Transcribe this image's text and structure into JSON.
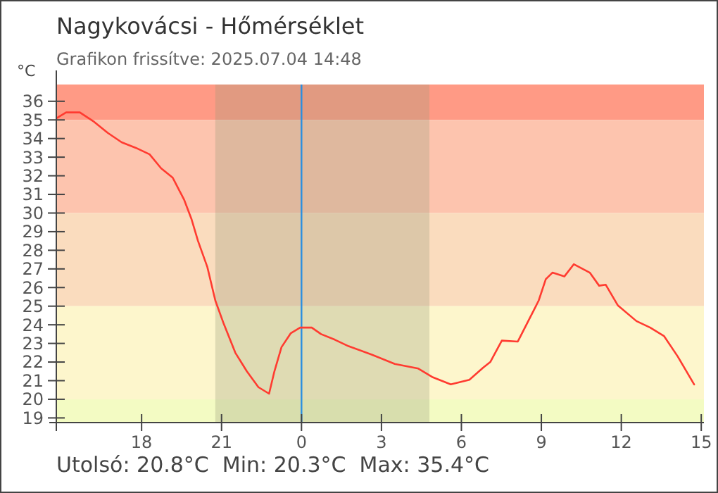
{
  "chart_data": {
    "type": "line",
    "title": "Nagykovácsi - Hőmérséklet",
    "subtitle": "Grafikon frissítve: 2025.07.04 14:48",
    "ylabel": "°C",
    "annotations": [
      "Utolsó: 20.8°C  Min: 20.3°C  Max: 35.4°C"
    ],
    "xlim": [
      "2025-07-03T14:48",
      "2025-07-04T15:06"
    ],
    "ylim": [
      18.75,
      36.9
    ],
    "xticks": [
      {
        "value": "2025-07-03T18:00",
        "label": "18"
      },
      {
        "value": "2025-07-03T21:00",
        "label": "21"
      },
      {
        "value": "2025-07-04T00:00",
        "label": "0"
      },
      {
        "value": "2025-07-04T03:00",
        "label": "3"
      },
      {
        "value": "2025-07-04T06:00",
        "label": "6"
      },
      {
        "value": "2025-07-04T09:00",
        "label": "9"
      },
      {
        "value": "2025-07-04T12:00",
        "label": "12"
      },
      {
        "value": "2025-07-04T15:00",
        "label": "15"
      }
    ],
    "yticks": [
      19,
      20,
      21,
      22,
      23,
      24,
      25,
      26,
      27,
      28,
      29,
      30,
      31,
      32,
      33,
      34,
      35,
      36
    ],
    "grid": false,
    "marker": "none",
    "line_style": "solid",
    "bands": [
      {
        "axis": "y",
        "from": 35,
        "to": 36.9,
        "color": "#ff9a85"
      },
      {
        "axis": "y",
        "from": 30,
        "to": 35,
        "color": "#fdc4ae"
      },
      {
        "axis": "y",
        "from": 25,
        "to": 30,
        "color": "#fadcbe"
      },
      {
        "axis": "y",
        "from": 20,
        "to": 25,
        "color": "#fdf6cc"
      },
      {
        "axis": "y",
        "from": 18.75,
        "to": 20,
        "color": "#f3fbc3"
      },
      {
        "axis": "x",
        "from": "2025-07-03T20:46",
        "to": "2025-07-04T04:48",
        "color": "#9a9a7a"
      }
    ],
    "ref_lines": [
      {
        "axis": "x",
        "value": "2025-07-04T00:00",
        "color": "#2a8fe0"
      }
    ],
    "series": [
      {
        "color": "#ff3b30",
        "x": [
          "2025-07-03T14:49",
          "2025-07-03T15:10",
          "2025-07-03T15:41",
          "2025-07-03T16:13",
          "2025-07-03T16:44",
          "2025-07-03T17:15",
          "2025-07-03T17:47",
          "2025-07-03T18:18",
          "2025-07-03T18:44",
          "2025-07-03T19:10",
          "2025-07-03T19:36",
          "2025-07-03T19:52",
          "2025-07-03T20:07",
          "2025-07-03T20:28",
          "2025-07-03T20:46",
          "2025-07-03T21:05",
          "2025-07-03T21:31",
          "2025-07-03T21:57",
          "2025-07-03T22:23",
          "2025-07-03T22:47",
          "2025-07-03T22:59",
          "2025-07-03T23:15",
          "2025-07-03T23:36",
          "2025-07-03T23:57",
          "2025-07-04T00:23",
          "2025-07-04T00:44",
          "2025-07-04T01:15",
          "2025-07-04T01:46",
          "2025-07-04T02:38",
          "2025-07-04T03:30",
          "2025-07-04T04:23",
          "2025-07-04T04:54",
          "2025-07-04T05:36",
          "2025-07-04T06:18",
          "2025-07-04T06:49",
          "2025-07-04T07:05",
          "2025-07-04T07:31",
          "2025-07-04T08:07",
          "2025-07-04T08:38",
          "2025-07-04T08:54",
          "2025-07-04T09:10",
          "2025-07-04T09:25",
          "2025-07-04T09:52",
          "2025-07-04T10:13",
          "2025-07-04T10:49",
          "2025-07-04T11:10",
          "2025-07-04T11:25",
          "2025-07-04T11:52",
          "2025-07-04T12:34",
          "2025-07-04T13:05",
          "2025-07-04T13:36",
          "2025-07-04T14:07",
          "2025-07-04T14:44"
        ],
        "values": [
          35.1,
          35.4,
          35.4,
          34.9,
          34.3,
          33.8,
          33.5,
          33.15,
          32.4,
          31.9,
          30.7,
          29.7,
          28.5,
          27.1,
          25.3,
          24.05,
          22.5,
          21.5,
          20.65,
          20.3,
          21.5,
          22.8,
          23.55,
          23.85,
          23.85,
          23.5,
          23.2,
          22.85,
          22.4,
          21.9,
          21.65,
          21.2,
          20.8,
          21.05,
          21.7,
          22.0,
          23.15,
          23.1,
          24.55,
          25.3,
          26.45,
          26.8,
          26.6,
          27.25,
          26.8,
          26.1,
          26.15,
          25.05,
          24.2,
          23.85,
          23.4,
          22.3,
          20.8
        ]
      }
    ]
  }
}
